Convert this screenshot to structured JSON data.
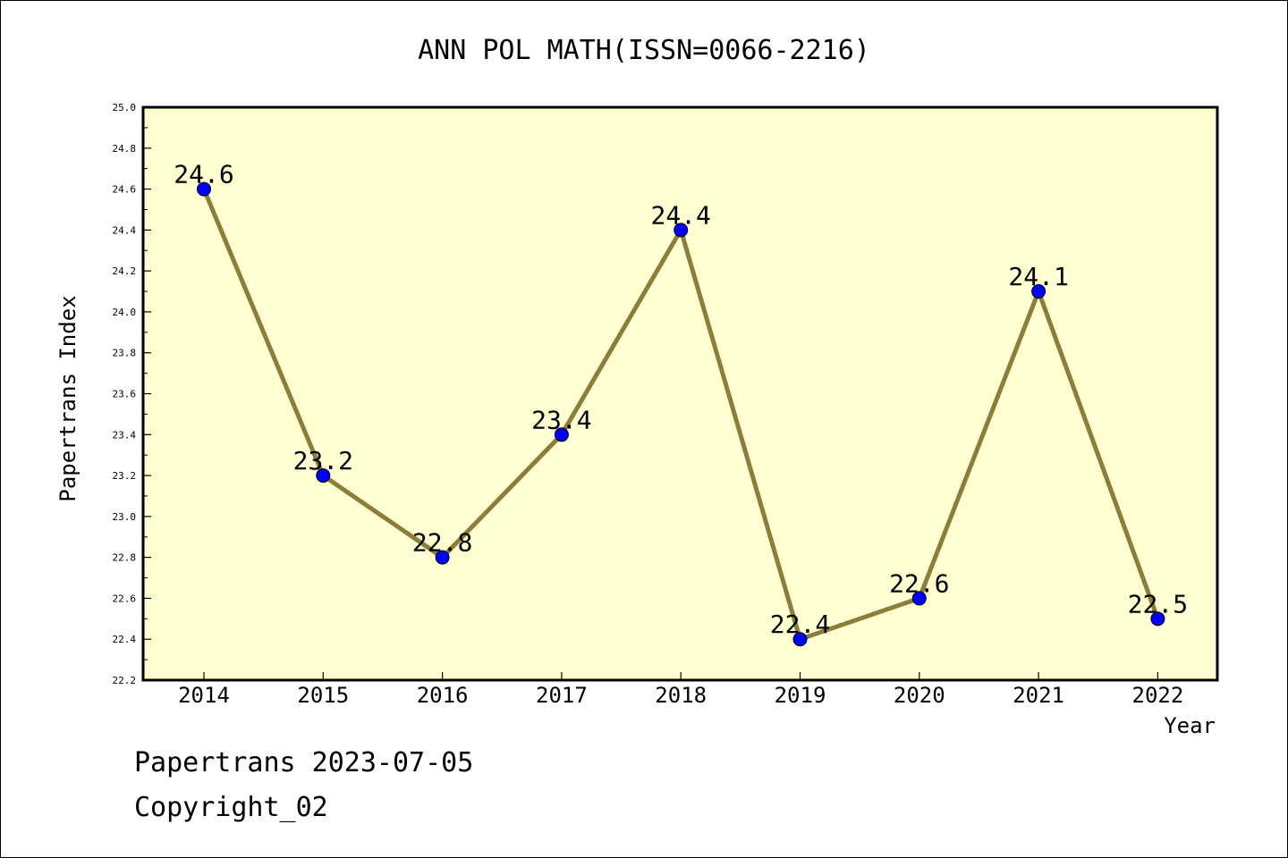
{
  "chart_data": {
    "type": "line",
    "title": "ANN POL MATH(ISSN=0066-2216)",
    "xlabel": "Year",
    "ylabel": "Papertrans Index",
    "categories": [
      "2014",
      "2015",
      "2016",
      "2017",
      "2018",
      "2019",
      "2020",
      "2021",
      "2022"
    ],
    "series": [
      {
        "values": [
          24.6,
          23.2,
          22.8,
          23.4,
          24.4,
          22.4,
          22.6,
          24.1,
          22.5
        ]
      }
    ],
    "data_labels": [
      "24.6",
      "23.2",
      "22.8",
      "23.4",
      "24.4",
      "22.4",
      "22.6",
      "24.1",
      "22.5"
    ],
    "ylim": [
      22.2,
      25.0
    ],
    "yticks": [
      "22.2",
      "22.4",
      "22.6",
      "22.8",
      "23.0",
      "23.2",
      "23.4",
      "23.6",
      "23.8",
      "24.0",
      "24.2",
      "24.4",
      "24.6",
      "24.8",
      "25.0"
    ],
    "grid": false,
    "legend": "none",
    "colors": {
      "plot_background": "#ffffd2",
      "line": "#8b7d3a",
      "marker": "#0000ff",
      "axes": "#000000"
    }
  },
  "footer": {
    "line1": "Papertrans 2023-07-05",
    "line2": "Copyright_02"
  }
}
